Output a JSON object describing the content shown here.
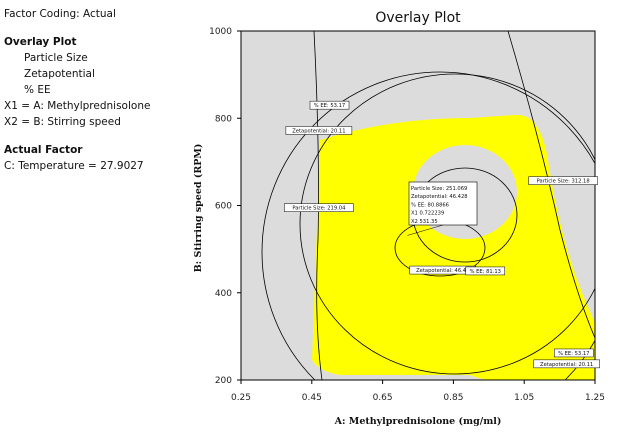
{
  "info": {
    "factor_coding": "Factor Coding: Actual",
    "overlay_heading": "Overlay Plot",
    "responses": [
      "Particle Size",
      "Zetapotential",
      "% EE"
    ],
    "x1": "X1 = A: Methylprednisolone",
    "x2": "X2 = B: Stirring speed",
    "actual_heading": "Actual Factor",
    "actual_factor": "C: Temperature = 27.9027"
  },
  "colors": {
    "background": "#ffffff",
    "plot_area": "#dcdcdc",
    "feasible_region": "#ffff00",
    "contour": "#000000"
  },
  "chart_data": {
    "type": "contour-overlay",
    "title": "Overlay Plot",
    "xlabel": "A: Methylprednisolone (mg/ml)",
    "ylabel": "B: Stirring speed (RPM)",
    "xlim": [
      0.25,
      1.25
    ],
    "ylim": [
      200,
      1000
    ],
    "xticks": [
      "0.25",
      "0.45",
      "0.65",
      "0.85",
      "1.05",
      "1.25"
    ],
    "yticks": [
      "200",
      "400",
      "600",
      "800",
      "1000"
    ],
    "grid": false,
    "contour_labels": [
      {
        "text": "% EE: 53.17",
        "x": 0.5,
        "y": 830
      },
      {
        "text": "Zetapotential: 20.11",
        "x": 0.47,
        "y": 772
      },
      {
        "text": "Particle Size: 312.18",
        "x": 1.16,
        "y": 657
      },
      {
        "text": "Particle Size: 219.04",
        "x": 0.47,
        "y": 595
      },
      {
        "text": "Zetapotential: 46.43",
        "x": 0.82,
        "y": 452
      },
      {
        "text": "% EE: 81.13",
        "x": 0.94,
        "y": 450
      },
      {
        "text": "% EE: 53.17",
        "x": 1.19,
        "y": 262
      },
      {
        "text": "Zetapotential: 20.11",
        "x": 1.17,
        "y": 237
      }
    ],
    "flag": {
      "lines": [
        "Particle Size:  251.069",
        "Zetapotential:  46.428",
        "% EE:   80.8866",
        "X1   0.722239",
        "X2   531.35"
      ],
      "x": 0.72,
      "y": 531.35
    }
  }
}
